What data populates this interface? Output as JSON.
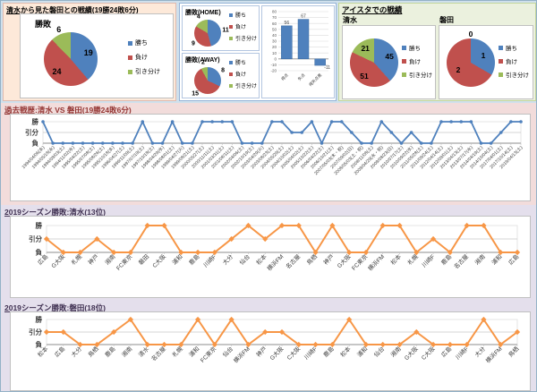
{
  "colors": {
    "win": "#4f81bd",
    "loss": "#c0504d",
    "draw": "#9bbb59",
    "history_line": "#4f81bd",
    "season_line": "#f79646"
  },
  "legend_labels": [
    "勝ち",
    "負け",
    "引き分け"
  ],
  "top": {
    "head_to_head": {
      "title": "清水から見た磐田との戦績(19勝24敗6分)"
    },
    "stadium": {
      "title": "アイスタでの戦績",
      "shimizu_label": "清水",
      "iwata_label": "磐田"
    }
  },
  "sections": {
    "history": {
      "title": "過去戦歴:清水 VS 磐田(19勝24敗6分)"
    },
    "shimizu_2019": {
      "title": "2019シーズン勝敗:清水(13位)"
    },
    "iwata_2019": {
      "title": "2019シーズン勝敗:磐田(18位)"
    }
  },
  "chart_data": [
    {
      "id": "pie_overall",
      "type": "pie",
      "title": "勝敗",
      "labels": [
        "勝ち",
        "負け",
        "引き分け"
      ],
      "values": [
        19,
        24,
        6
      ],
      "colors": [
        "#4f81bd",
        "#c0504d",
        "#9bbb59"
      ],
      "label_r": 0.7
    },
    {
      "id": "pie_home",
      "type": "pie",
      "title": "勝敗(HOME)",
      "labels": [
        "勝ち",
        "負け",
        "引き分け"
      ],
      "values": [
        11,
        9,
        4
      ],
      "colors": [
        "#4f81bd",
        "#c0504d",
        "#9bbb59"
      ],
      "label_r": 1.35,
      "small_r": 1.35
    },
    {
      "id": "pie_away",
      "type": "pie",
      "title": "勝敗(AWAY)",
      "labels": [
        "勝ち",
        "負け",
        "引き分け"
      ],
      "values": [
        8,
        15,
        2
      ],
      "colors": [
        "#4f81bd",
        "#c0504d",
        "#9bbb59"
      ],
      "label_r": 1.35,
      "small_r": 1.35
    },
    {
      "id": "bar_goals",
      "type": "bar",
      "categories": [
        "得点",
        "失点",
        "得失点差"
      ],
      "values": [
        56,
        67,
        -11
      ],
      "ylim": [
        -20,
        80
      ],
      "ytick": 10,
      "color": "#4f81bd"
    },
    {
      "id": "pie_aista_shimizu",
      "type": "pie",
      "title": "清水",
      "labels": [
        "勝ち",
        "負け",
        "引き分け"
      ],
      "values": [
        45,
        51,
        21
      ],
      "colors": [
        "#4f81bd",
        "#c0504d",
        "#9bbb59"
      ],
      "label_r": 0.68
    },
    {
      "id": "pie_aista_iwata",
      "type": "pie",
      "title": "磐田",
      "labels": [
        "勝ち",
        "負け",
        "引き分け"
      ],
      "values": [
        1,
        2,
        0
      ],
      "colors": [
        "#4f81bd",
        "#c0504d",
        "#9bbb59"
      ],
      "label_r": 0.6,
      "small_r": 1.2
    },
    {
      "id": "history",
      "type": "line",
      "color": "#4f81bd",
      "marker": "circle",
      "y_categories": [
        "勝",
        "引分",
        "負"
      ],
      "x": [
        "1994/04/06(水)",
        "1994/05/18(水)",
        "1994/09/03(土)",
        "1994/11/02(水)",
        "1995/04/22(土)",
        "1995/07/08(土)",
        "1995/08/26(土)",
        "1995/10/18(水)",
        "1996/04/27(土)",
        "1996/11/09(土)",
        "1997/07/19(土)",
        "1997/10/18(土)",
        "1998/04/29(水)",
        "1998/08/01(土)",
        "1999/04/27(火)",
        "1999/08/21(土)",
        "2000/05/27(土)",
        "2000/11/11(土)",
        "2001/03/31(土)",
        "2001/08/11(土)",
        "2002/04/06(土)",
        "2002/10/19(土)",
        "2003/04/29(火)",
        "2003/08/23(土)",
        "2004/05/29(土)",
        "2004/10/02(土)",
        "2005/04/02(土)",
        "2005/10/22(土)",
        "2006/04/22(土)",
        "2006/10/21(土)",
        "2007/05/03(木・祝)",
        "2007/09/02(日)",
        "2008/05/03(土・祝)",
        "2008/11/08(土)",
        "2009/04/29(水・祝)",
        "2009/08/23(日)",
        "2010/07/17(土)",
        "2010/09/22(水)",
        "2011/05/28(土)",
        "2011/09/24(土)",
        "2012/04/14(土)",
        "2012/09/01(土)",
        "2013/04/13(土)",
        "2013/07/17(水)",
        "2014/04/19(土)",
        "2014/10/04(土)",
        "2017/04/01(土)",
        "2017/10/14(土)",
        "2019/04/13(土)"
      ],
      "results": [
        "勝",
        "負",
        "負",
        "負",
        "負",
        "負",
        "負",
        "負",
        "負",
        "負",
        "勝",
        "負",
        "負",
        "勝",
        "負",
        "負",
        "勝",
        "勝",
        "勝",
        "勝",
        "負",
        "負",
        "負",
        "勝",
        "勝",
        "引分",
        "引分",
        "勝",
        "負",
        "勝",
        "勝",
        "引分",
        "負",
        "負",
        "勝",
        "引分",
        "負",
        "引分",
        "負",
        "負",
        "勝",
        "勝",
        "勝",
        "勝",
        "負",
        "負",
        "引分",
        "勝",
        "勝"
      ]
    },
    {
      "id": "shimizu2019",
      "type": "line",
      "color": "#f79646",
      "marker": "diamond",
      "y_categories": [
        "勝",
        "引分",
        "負"
      ],
      "x": [
        "広島",
        "G大阪",
        "札幌",
        "神戸",
        "湘南",
        "FC東京",
        "磐田",
        "C大阪",
        "浦和",
        "鹿島",
        "川崎F",
        "大分",
        "仙台",
        "松本",
        "横浜FM",
        "名古屋",
        "鳥栖",
        "神戸",
        "G大阪",
        "FC東京",
        "横浜FM",
        "松本",
        "札幌",
        "川崎F",
        "鹿島",
        "名古屋",
        "湘南",
        "浦和",
        "広島"
      ],
      "results": [
        "引分",
        "負",
        "負",
        "引分",
        "負",
        "負",
        "勝",
        "勝",
        "負",
        "負",
        "負",
        "引分",
        "勝",
        "引分",
        "勝",
        "勝",
        "負",
        "勝",
        "負",
        "負",
        "勝",
        "勝",
        "負",
        "引分",
        "負",
        "勝",
        "勝",
        "負",
        "負"
      ]
    },
    {
      "id": "iwata2019",
      "type": "line",
      "color": "#f79646",
      "marker": "diamond",
      "y_categories": [
        "勝",
        "引分",
        "負"
      ],
      "x": [
        "松本",
        "広島",
        "大分",
        "鳥栖",
        "鹿島",
        "湘南",
        "清水",
        "名古屋",
        "札幌",
        "浦和",
        "FC東京",
        "仙台",
        "横浜FM",
        "神戸",
        "G大阪",
        "C大阪",
        "川崎F",
        "鹿島",
        "松本",
        "浦和",
        "仙台",
        "湘南",
        "G大阪",
        "C大阪",
        "広島",
        "川崎F",
        "大分",
        "横浜FM",
        "鳥栖"
      ],
      "results": [
        "引分",
        "引分",
        "負",
        "負",
        "引分",
        "勝",
        "負",
        "負",
        "負",
        "勝",
        "負",
        "勝",
        "負",
        "引分",
        "引分",
        "負",
        "負",
        "負",
        "勝",
        "負",
        "負",
        "負",
        "引分",
        "負",
        "負",
        "負",
        "勝",
        "負",
        "引分"
      ]
    }
  ]
}
